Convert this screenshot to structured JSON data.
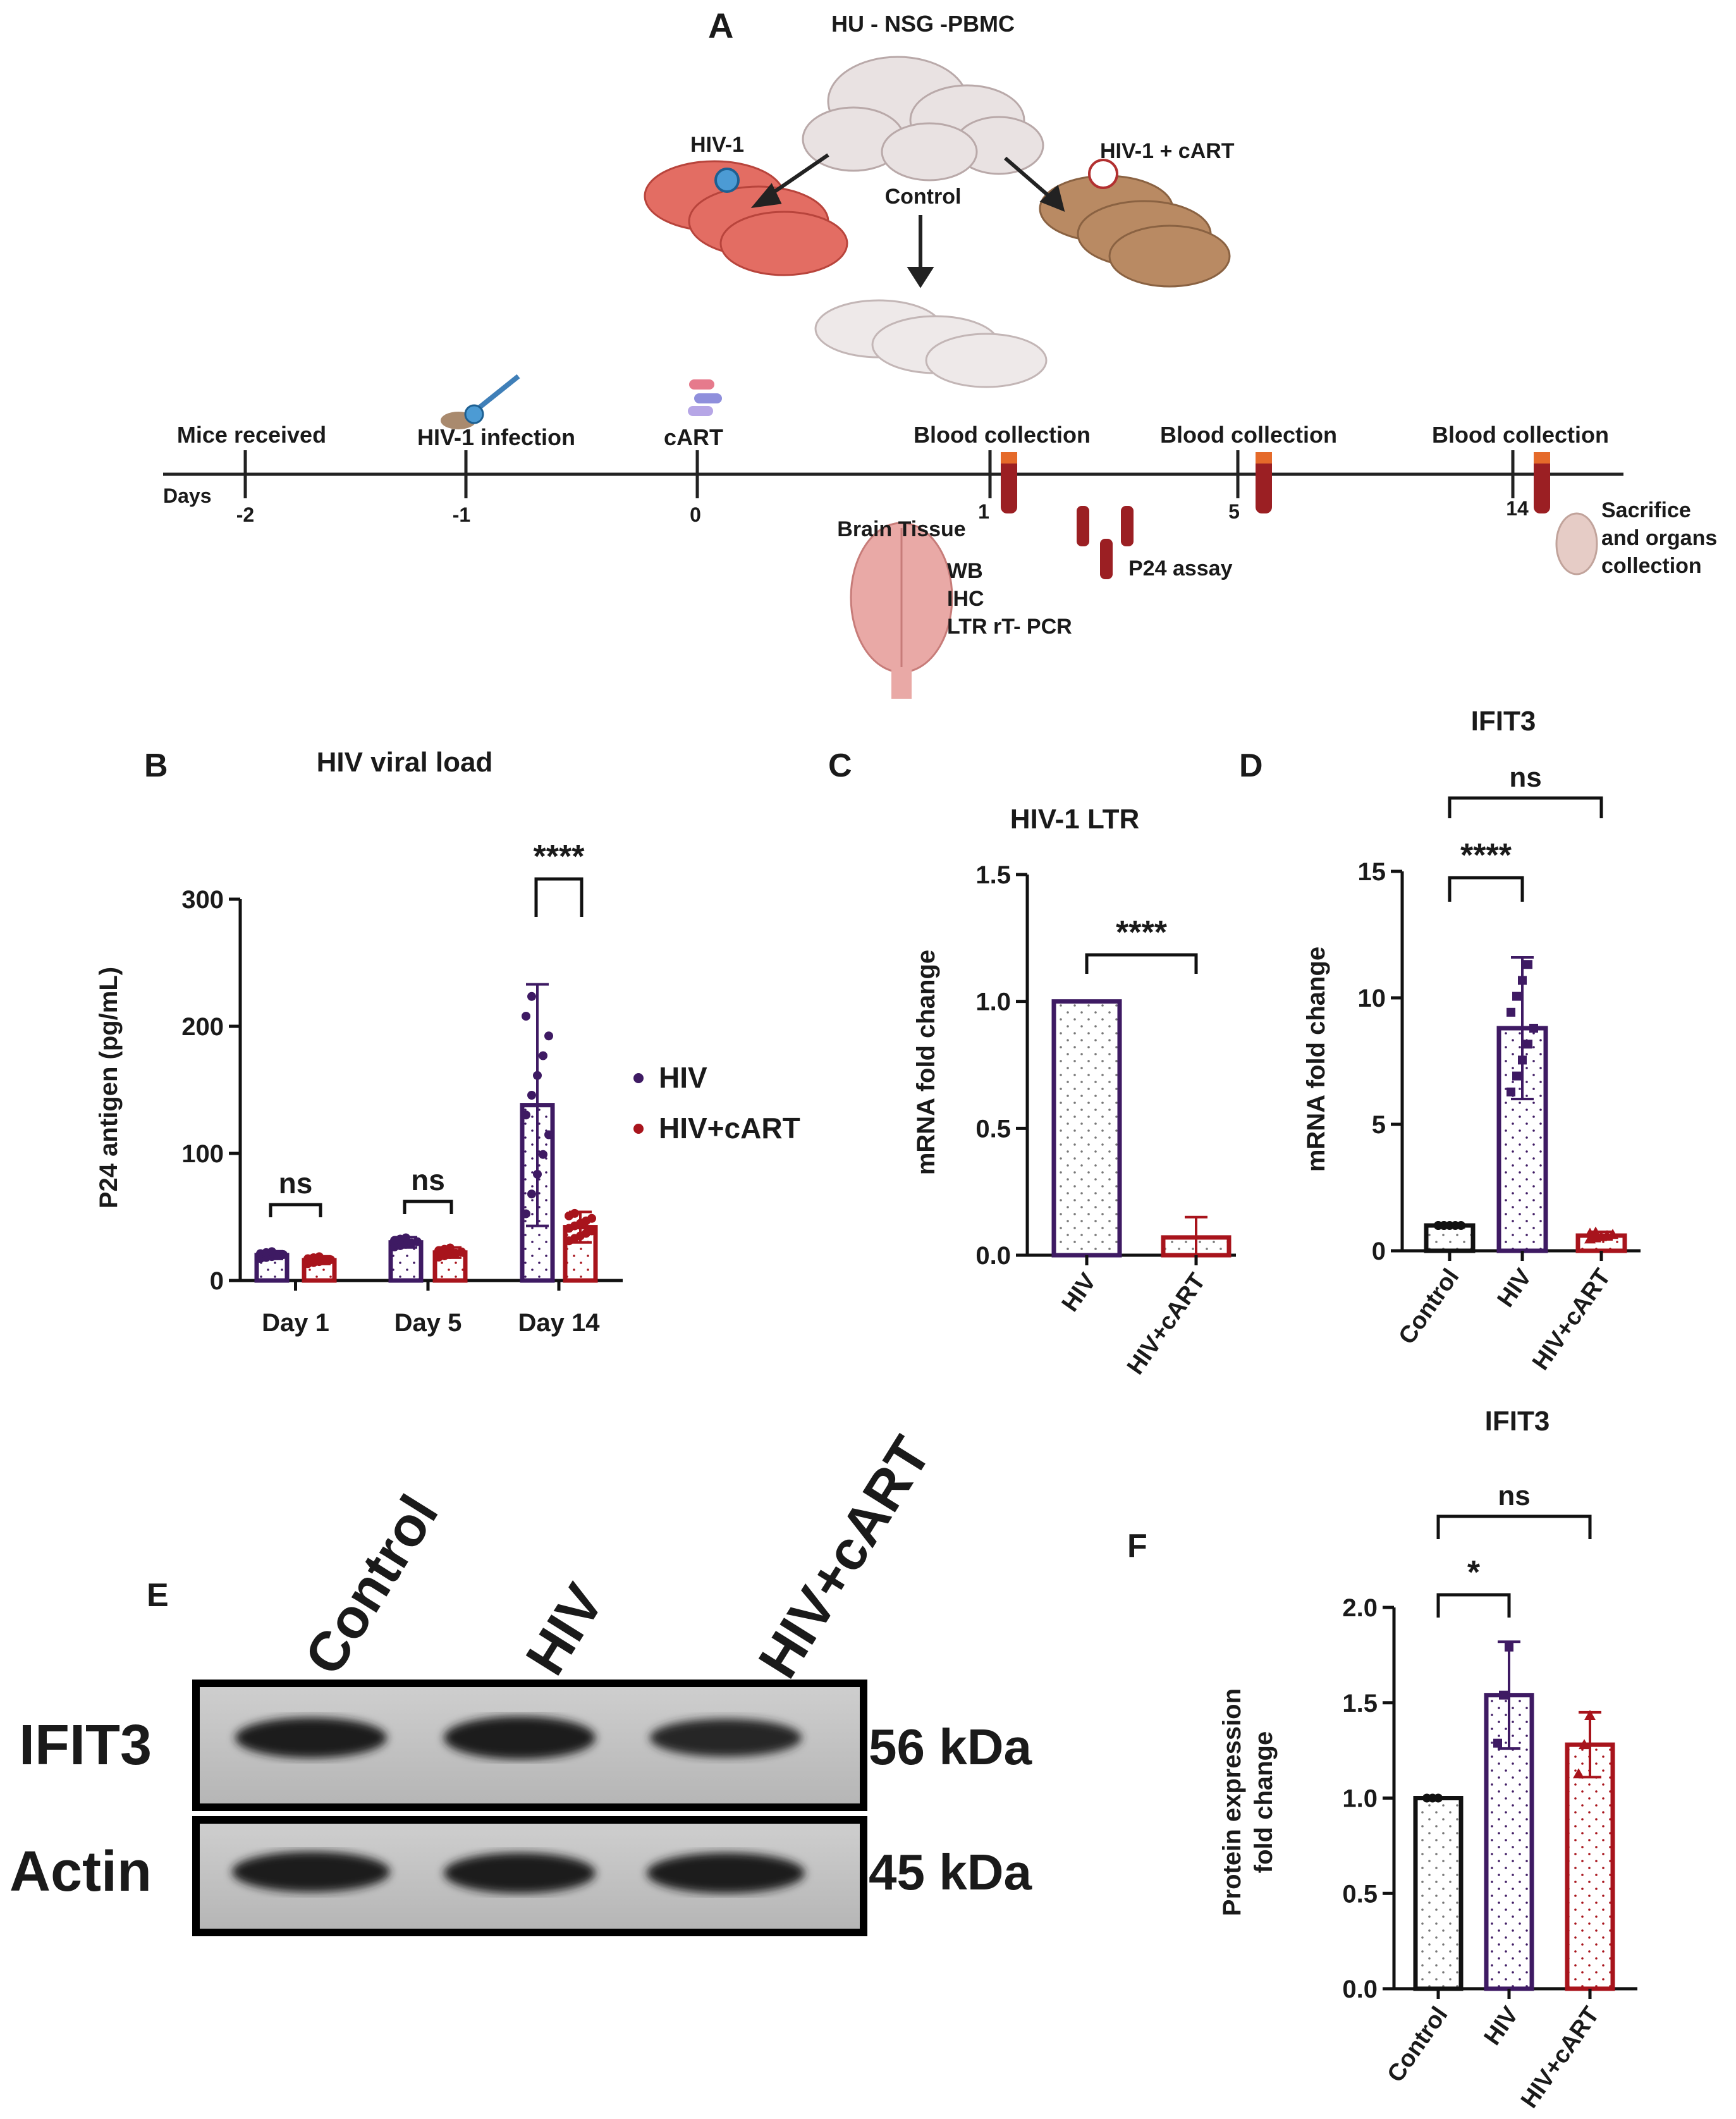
{
  "panel_a": {
    "letter": "A",
    "title": "HU - NSG -PBMC",
    "groups": {
      "hiv": "HIV-1",
      "control": "Control",
      "hiv_cart": "HIV-1 + cART"
    },
    "timeline": {
      "days_label": "Days",
      "events": [
        "Mice received",
        "HIV-1 infection",
        "cART",
        "Blood collection",
        "Blood collection",
        "Blood collection"
      ],
      "ticks": [
        "-2",
        "-1",
        "0",
        "1",
        "5",
        "14"
      ]
    },
    "brain": {
      "title": "Brain Tissue",
      "assays": [
        "WB",
        "IHC",
        "LTR rT- PCR"
      ]
    },
    "p24": "P24 assay",
    "sacrifice": [
      "Sacrifice",
      "and organs",
      "collection"
    ]
  },
  "chart_data": [
    {
      "panel": "B",
      "type": "bar",
      "title": "HIV viral load",
      "ylabel": "P24 antigen (pg/mL)",
      "ylim": [
        0,
        300
      ],
      "yticks": [
        "0",
        "100",
        "200",
        "300"
      ],
      "categories": [
        "Day 1",
        "Day 5",
        "Day 14"
      ],
      "series": [
        {
          "name": "HIV",
          "values": [
            20,
            30,
            138
          ],
          "sd": [
            3,
            4,
            95
          ]
        },
        {
          "name": "HIV+cART",
          "values": [
            16,
            22,
            42
          ],
          "sd": [
            3,
            4,
            12
          ]
        }
      ],
      "significance": [
        "ns",
        "ns",
        "****"
      ],
      "legend": "right"
    },
    {
      "panel": "C",
      "type": "bar",
      "title": "HIV-1 LTR",
      "ylabel": "mRNA fold change",
      "ylim": [
        0,
        1.5
      ],
      "yticks": [
        "0.0",
        "0.5",
        "1.0",
        "1.5"
      ],
      "categories": [
        "HIV",
        "HIV+cART"
      ],
      "values": [
        1.0,
        0.07
      ],
      "sd": [
        0,
        0.08
      ],
      "significance": [
        "****"
      ]
    },
    {
      "panel": "D",
      "type": "bar",
      "title": "IFIT3",
      "ylabel": "mRNA fold change",
      "ylim": [
        0,
        15
      ],
      "yticks": [
        "0",
        "5",
        "10",
        "15"
      ],
      "categories": [
        "Control",
        "HIV",
        "HIV+cART"
      ],
      "values": [
        1.0,
        8.8,
        0.6
      ],
      "sd": [
        0,
        2.8,
        0.15
      ],
      "significance": [
        "****",
        "ns"
      ]
    },
    {
      "panel": "F",
      "type": "bar",
      "title": "IFIT3",
      "ylabel": "Protein expression fold change",
      "ylim": [
        0,
        2.0
      ],
      "yticks": [
        "0.0",
        "0.5",
        "1.0",
        "1.5",
        "2.0"
      ],
      "categories": [
        "Control",
        "HIV",
        "HIV+cART"
      ],
      "values": [
        1.0,
        1.54,
        1.28
      ],
      "sd": [
        0,
        0.28,
        0.17
      ],
      "significance": [
        "*",
        "ns"
      ]
    }
  ],
  "panel_e": {
    "letter": "E",
    "lanes": [
      "Control",
      "HIV",
      "HIV+cART"
    ],
    "rows": [
      {
        "label": "IFIT3",
        "size": "56 kDa"
      },
      {
        "label": "Actin",
        "size": "45 kDa"
      }
    ]
  },
  "colors": {
    "hiv": "#3e1a63",
    "hiv_cart": "#a8141c",
    "control": "#111111"
  }
}
